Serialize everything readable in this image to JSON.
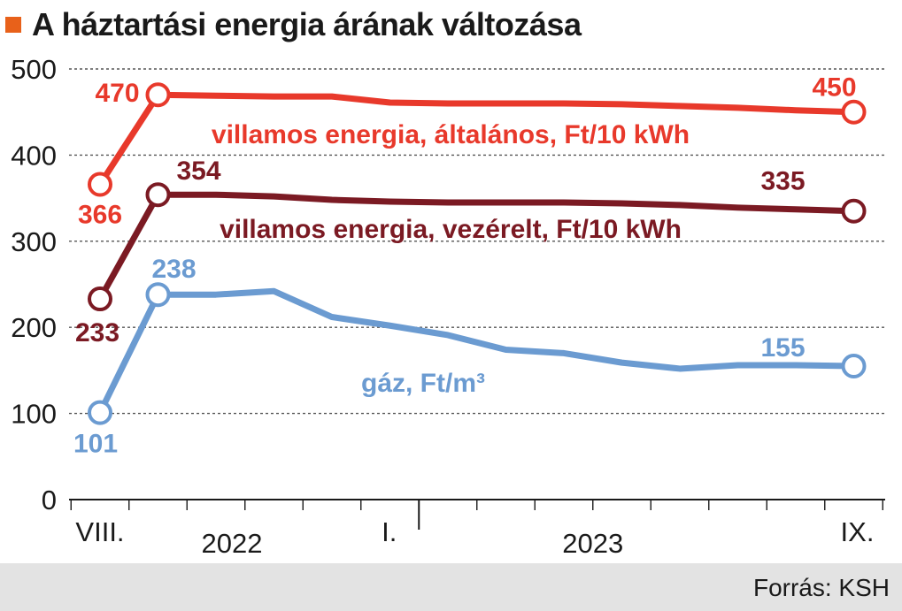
{
  "title": "A háztartási energia árának változása",
  "accent_color": "#e8611a",
  "source": "Forrás: KSH",
  "chart_data": {
    "type": "line",
    "title": "A háztartási energia árának változása",
    "xlabel": "",
    "ylabel": "",
    "ylim": [
      0,
      500
    ],
    "yticks": [
      "0",
      "100",
      "200",
      "300",
      "400",
      "500"
    ],
    "grid": true,
    "x": [
      "2022-08",
      "2022-09",
      "2022-10",
      "2022-11",
      "2022-12",
      "2023-01",
      "2023-02",
      "2023-03",
      "2023-04",
      "2023-05",
      "2023-06",
      "2023-07",
      "2023-08",
      "2023-09"
    ],
    "x_tick_labels": [
      "VIII.",
      "I.",
      "IX."
    ],
    "x_year_labels": [
      "2022",
      "2023"
    ],
    "series": [
      {
        "name": "villamos energia, általános, Ft/10 kWh",
        "color": "#e8392b",
        "values": [
          366,
          470,
          469,
          468,
          468,
          461,
          460,
          460,
          460,
          459,
          457,
          455,
          452,
          450
        ],
        "labels": [
          "366",
          "470",
          "450"
        ]
      },
      {
        "name": "villamos energia, vezérelt, Ft/10 kWh",
        "color": "#7b1a23",
        "values": [
          233,
          354,
          354,
          352,
          348,
          346,
          345,
          345,
          345,
          344,
          342,
          339,
          337,
          335
        ],
        "labels": [
          "233",
          "354",
          "335"
        ]
      },
      {
        "name": "gáz, Ft/m³",
        "color": "#6b9bd1",
        "values": [
          101,
          238,
          238,
          242,
          212,
          202,
          191,
          174,
          170,
          159,
          152,
          156,
          156,
          155
        ],
        "labels": [
          "101",
          "238",
          "155"
        ]
      }
    ]
  }
}
